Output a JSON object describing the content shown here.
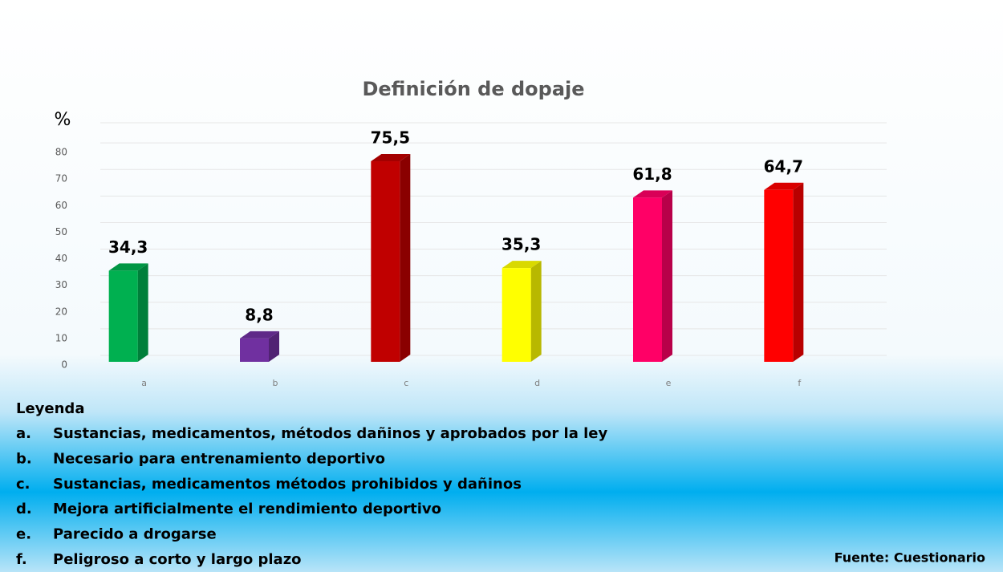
{
  "chart_data": {
    "type": "bar",
    "title": "Definición de dopaje",
    "y_label": "%",
    "categories": [
      "a",
      "b",
      "c",
      "d",
      "e",
      "f"
    ],
    "values": [
      34.3,
      8.8,
      75.5,
      35.3,
      61.8,
      64.7
    ],
    "value_labels": [
      "34,3",
      "8,8",
      "75,5",
      "35,3",
      "61,8",
      "64,7"
    ],
    "colors": [
      "#00b050",
      "#7030a0",
      "#c00000",
      "#ffff00",
      "#ff0066",
      "#ff0000"
    ],
    "ylim": [
      0,
      90
    ],
    "yticks": [
      0,
      10,
      20,
      30,
      40,
      50,
      60,
      70,
      80
    ],
    "grid": true,
    "legend": {
      "title": "Leyenda",
      "items": [
        {
          "key": "a.",
          "text": "Sustancias, medicamentos, métodos dañinos y aprobados por la ley"
        },
        {
          "key": "b.",
          "text": "Necesario para entrenamiento deportivo"
        },
        {
          "key": "c.",
          "text": "Sustancias, medicamentos métodos prohibidos y dañinos"
        },
        {
          "key": "d.",
          "text": "Mejora artificialmente el rendimiento deportivo"
        },
        {
          "key": "e.",
          "text": "Parecido a drogarse"
        },
        {
          "key": "f.",
          "text": "Peligroso a corto y largo plazo"
        }
      ]
    },
    "source": "Fuente: Cuestionario"
  }
}
